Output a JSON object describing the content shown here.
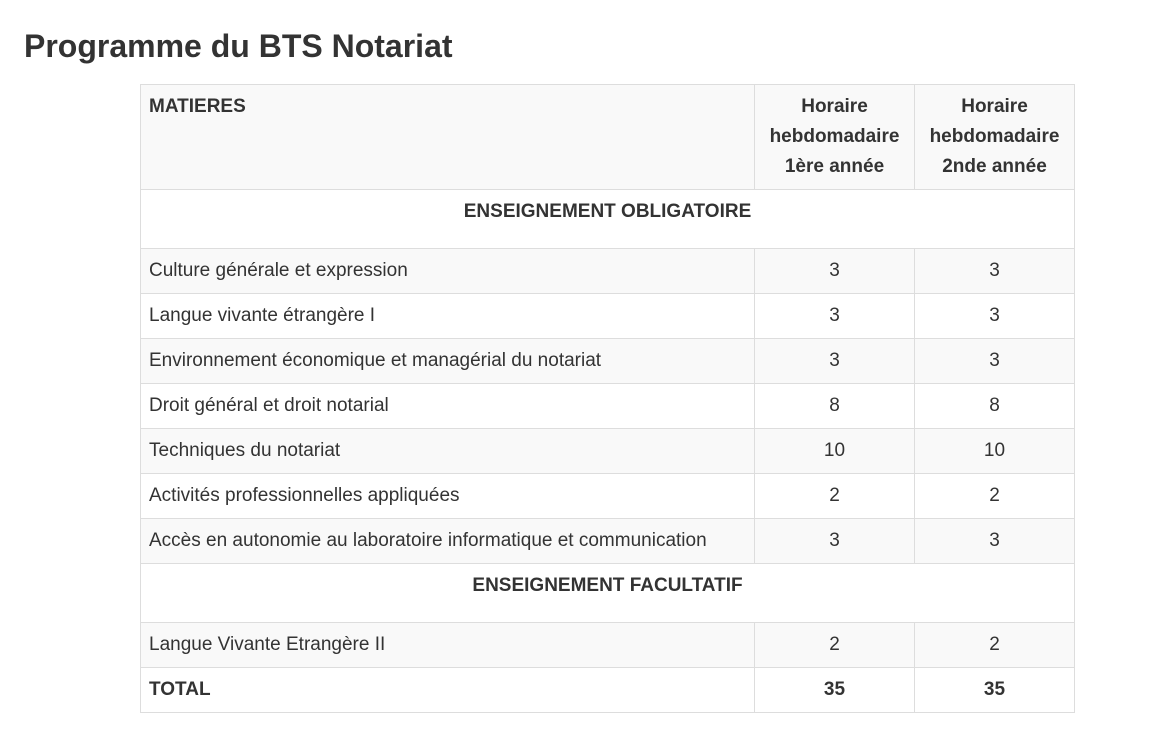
{
  "page": {
    "title": "Programme du BTS Notariat"
  },
  "table": {
    "headers": {
      "subject": "MATIERES",
      "year1": "Horaire hebdomadaire 1ère année",
      "year2": "Horaire hebdomadaire 2nde année"
    },
    "sections": [
      {
        "title": "ENSEIGNEMENT OBLIGATOIRE",
        "rows": [
          {
            "subject": "Culture générale et expression",
            "year1": "3",
            "year2": "3"
          },
          {
            "subject": "Langue vivante étrangère I",
            "year1": "3",
            "year2": "3"
          },
          {
            "subject": "Environnement économique et managérial du notariat",
            "year1": "3",
            "year2": "3"
          },
          {
            "subject": "Droit général et droit notarial",
            "year1": "8",
            "year2": "8"
          },
          {
            "subject": "Techniques du notariat",
            "year1": "10",
            "year2": "10"
          },
          {
            "subject": "Activités professionnelles appliquées",
            "year1": "2",
            "year2": "2"
          },
          {
            "subject": "Accès en autonomie au laboratoire informatique et communication",
            "year1": "3",
            "year2": "3"
          }
        ]
      },
      {
        "title": "ENSEIGNEMENT FACULTATIF",
        "rows": [
          {
            "subject": "Langue Vivante Etrangère II",
            "year1": "2",
            "year2": "2"
          }
        ]
      }
    ],
    "total": {
      "label": "TOTAL",
      "year1": "35",
      "year2": "35"
    }
  }
}
